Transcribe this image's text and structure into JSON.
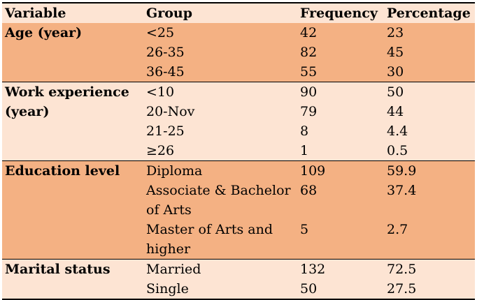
{
  "table": {
    "headers": [
      "Variable",
      "Group",
      "Frequency",
      "Percentage"
    ],
    "sections": [
      {
        "variable": "Age (year)",
        "rows": [
          {
            "group": "<25",
            "frequency": "42",
            "percentage": "23"
          },
          {
            "group": "26-35",
            "frequency": "82",
            "percentage": "45"
          },
          {
            "group": "36-45",
            "frequency": "55",
            "percentage": "30"
          }
        ]
      },
      {
        "variable_line1": "Work experience",
        "variable_line2": "(year)",
        "rows": [
          {
            "group": "<10",
            "frequency": "90",
            "percentage": "50"
          },
          {
            "group": "20-Nov",
            "frequency": "79",
            "percentage": "44"
          },
          {
            "group": "21-25",
            "frequency": "8",
            "percentage": "4.4"
          },
          {
            "group": "≥26",
            "frequency": "1",
            "percentage": "0.5"
          }
        ]
      },
      {
        "variable": "Education level",
        "rows": [
          {
            "group": "Diploma",
            "frequency": "109",
            "percentage": "59.9"
          },
          {
            "group_line1": "Associate & Bachelor",
            "group_line2": "of Arts",
            "frequency": "68",
            "percentage": "37.4"
          },
          {
            "group_line1": "Master of Arts and",
            "group_line2": "higher",
            "frequency": "5",
            "percentage": "2.7"
          }
        ]
      },
      {
        "variable": "Marital status",
        "rows": [
          {
            "group": "Married",
            "frequency": "132",
            "percentage": "72.5"
          },
          {
            "group": "Single",
            "frequency": "50",
            "percentage": "27.5"
          }
        ]
      }
    ]
  },
  "colors": {
    "light_band": "#fde4d3",
    "dark_band": "#f4b183"
  }
}
